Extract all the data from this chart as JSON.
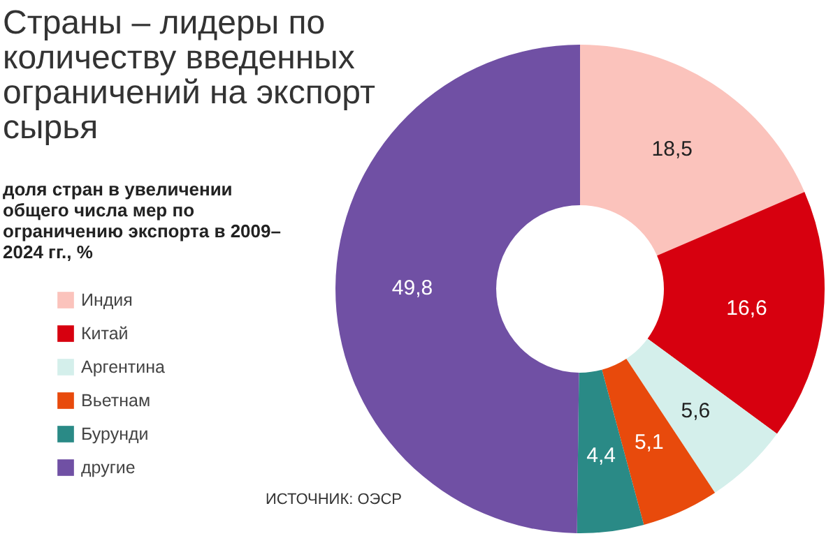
{
  "chart_data": {
    "type": "donut",
    "title": "Страны – лидеры по количеству введенных ограничений на экспорт сырья",
    "subtitle": "доля стран в увеличении общего числа мер по ограничению экспорта в 2009–2024 гг., %",
    "categories": [
      "Индия",
      "Китай",
      "Аргентина",
      "Вьетнам",
      "Бурунди",
      "другие"
    ],
    "values": [
      18.5,
      16.6,
      5.6,
      5.1,
      4.4,
      49.8
    ],
    "value_labels": [
      "18,5",
      "16,6",
      "5,6",
      "5,1",
      "4,4",
      "49,8"
    ],
    "colors": [
      "#fbc3bc",
      "#d7000f",
      "#d4efeb",
      "#e84a0c",
      "#2a8a86",
      "#7050a4"
    ],
    "legend": "left",
    "annotations": [
      "ИСТОЧНИК: ОЭСР"
    ]
  }
}
